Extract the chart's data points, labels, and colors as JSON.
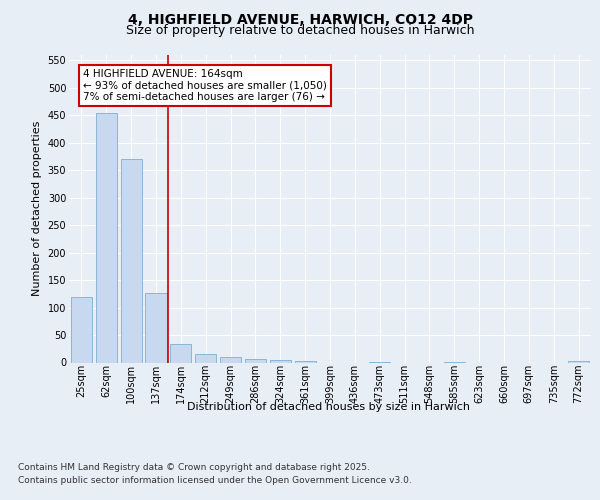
{
  "title_line1": "4, HIGHFIELD AVENUE, HARWICH, CO12 4DP",
  "title_line2": "Size of property relative to detached houses in Harwich",
  "xlabel": "Distribution of detached houses by size in Harwich",
  "ylabel": "Number of detached properties",
  "categories": [
    "25sqm",
    "62sqm",
    "100sqm",
    "137sqm",
    "174sqm",
    "212sqm",
    "249sqm",
    "286sqm",
    "324sqm",
    "361sqm",
    "399sqm",
    "436sqm",
    "473sqm",
    "511sqm",
    "548sqm",
    "585sqm",
    "623sqm",
    "660sqm",
    "697sqm",
    "735sqm",
    "772sqm"
  ],
  "values": [
    120,
    455,
    370,
    127,
    34,
    15,
    10,
    7,
    5,
    2,
    0,
    0,
    1,
    0,
    0,
    1,
    0,
    0,
    0,
    0,
    2
  ],
  "bar_color": "#c8d8ee",
  "bar_edge_color": "#7aafd4",
  "vline_color": "#cc0000",
  "vline_pos": 3.5,
  "annotation_line1": "4 HIGHFIELD AVENUE: 164sqm",
  "annotation_line2": "← 93% of detached houses are smaller (1,050)",
  "annotation_line3": "7% of semi-detached houses are larger (76) →",
  "annotation_box_edgecolor": "#cc0000",
  "ylim_max": 560,
  "yticks": [
    0,
    50,
    100,
    150,
    200,
    250,
    300,
    350,
    400,
    450,
    500,
    550
  ],
  "bg_color": "#e8eef5",
  "grid_color": "#ffffff",
  "footer_line1": "Contains HM Land Registry data © Crown copyright and database right 2025.",
  "footer_line2": "Contains public sector information licensed under the Open Government Licence v3.0.",
  "title_fontsize": 10,
  "subtitle_fontsize": 9,
  "axis_label_fontsize": 8,
  "tick_fontsize": 7,
  "annot_fontsize": 7.5,
  "footer_fontsize": 6.5
}
